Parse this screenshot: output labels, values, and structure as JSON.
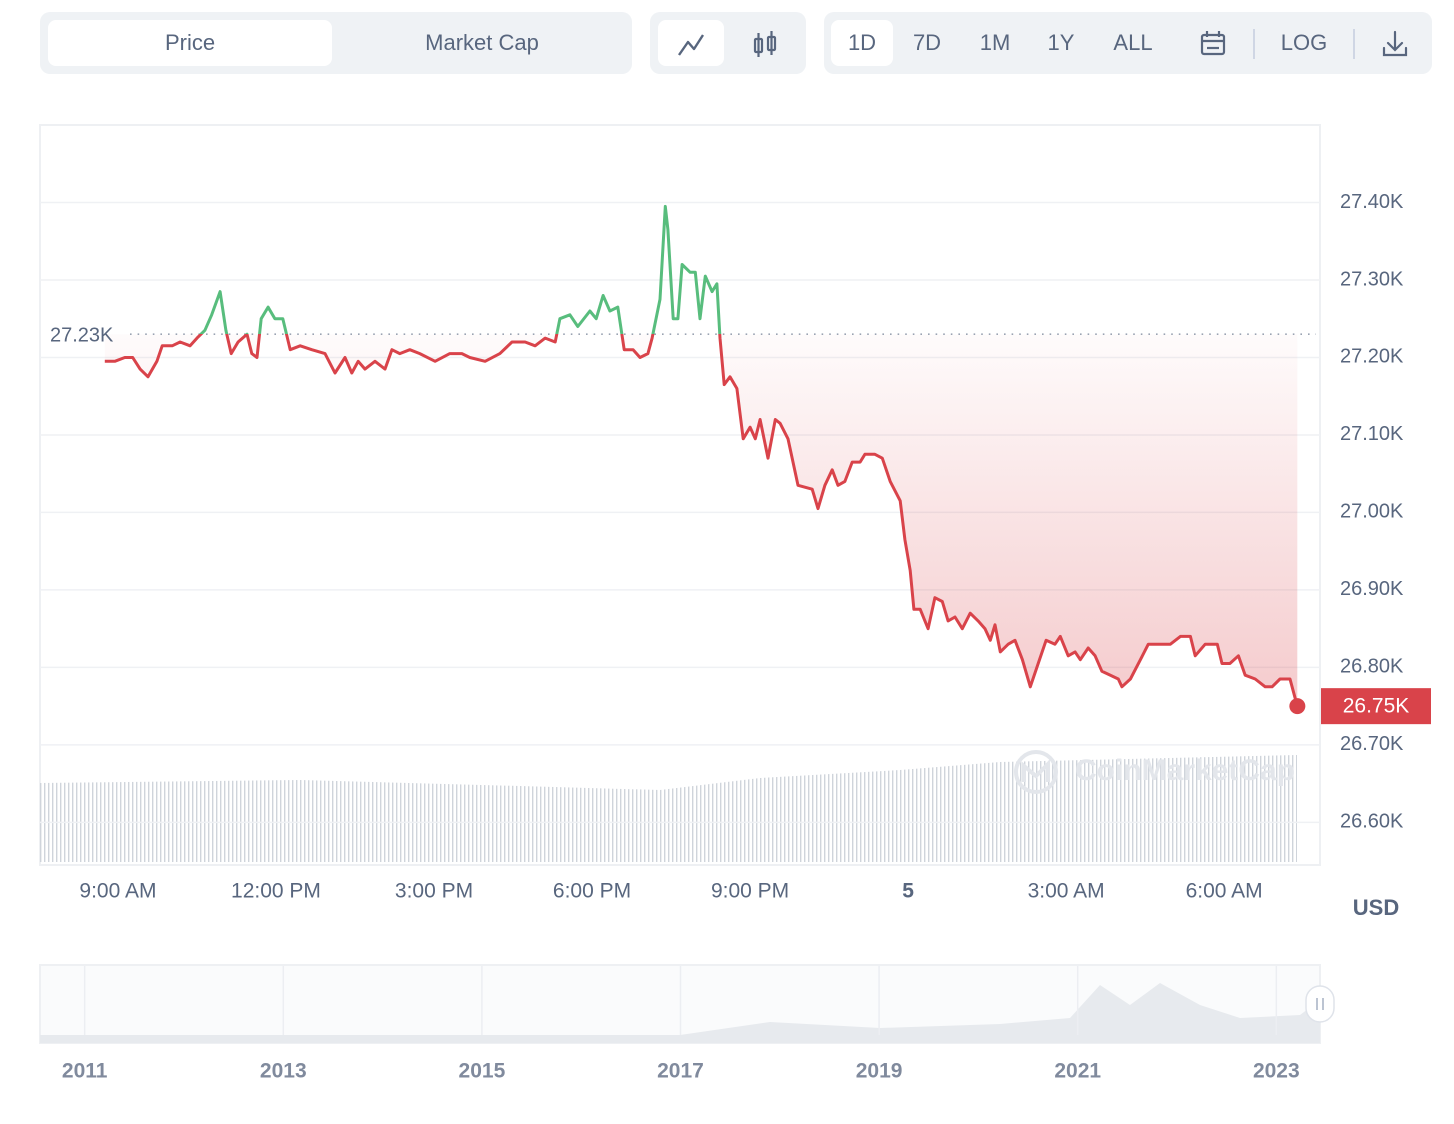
{
  "toolbar": {
    "modes": [
      "Price",
      "Market Cap"
    ],
    "ranges": [
      "1D",
      "7D",
      "1M",
      "1Y",
      "ALL"
    ],
    "log": "LOG"
  },
  "chart_data": {
    "type": "line",
    "x": [
      8.75,
      8.94,
      9.13,
      9.28,
      9.42,
      9.57,
      9.74,
      9.84,
      10.03,
      10.18,
      10.37,
      10.5,
      10.65,
      10.78,
      10.94,
      11.05,
      11.15,
      11.28,
      11.45,
      11.54,
      11.64,
      11.72,
      11.85,
      11.98,
      12.13,
      12.27,
      12.46,
      12.68,
      12.93,
      13.12,
      13.31,
      13.44,
      13.56,
      13.69,
      13.88,
      14.07,
      14.2,
      14.35,
      14.54,
      14.73,
      15.02,
      15.3,
      15.53,
      15.68,
      15.97,
      16.25,
      16.48,
      16.73,
      16.92,
      17.11,
      17.3,
      17.39,
      17.58,
      17.73,
      17.96,
      18.08,
      18.21,
      18.34,
      18.49,
      18.61,
      18.78,
      18.91,
      19.06,
      19.14,
      19.29,
      19.39,
      19.44,
      19.54,
      19.63,
      19.71,
      19.86,
      19.96,
      20.05,
      20.15,
      20.28,
      20.37,
      20.43,
      20.51,
      20.62,
      20.75,
      20.87,
      21.0,
      21.1,
      21.19,
      21.34,
      21.48,
      21.57,
      21.72,
      21.91,
      22.18,
      22.29,
      22.42,
      22.56,
      22.67,
      22.8,
      22.94,
      23.09,
      23.18,
      23.37,
      23.51,
      23.66,
      23.85,
      23.94,
      24.04,
      24.11,
      24.23,
      24.38,
      24.51,
      24.65,
      24.76,
      24.89,
      25.03,
      25.18,
      25.33,
      25.46,
      25.56,
      25.65,
      25.75,
      25.9,
      26.03,
      26.17,
      26.32,
      26.47,
      26.62,
      26.79,
      26.89,
      27.04,
      27.17,
      27.27,
      27.42,
      27.55,
      27.68,
      27.84,
      27.99,
      28.06,
      28.22,
      28.41,
      28.56,
      28.79,
      28.98,
      29.17,
      29.36,
      29.45,
      29.64,
      29.87,
      29.96,
      30.11,
      30.27,
      30.4,
      30.59,
      30.78,
      30.91,
      31.06,
      31.25,
      31.39
    ],
    "values": [
      27195,
      27195,
      27200,
      27200,
      27185,
      27175,
      27195,
      27215,
      27215,
      27220,
      27215,
      27225,
      27235,
      27255,
      27285,
      27235,
      27205,
      27220,
      27230,
      27205,
      27200,
      27250,
      27265,
      27250,
      27250,
      27210,
      27215,
      27210,
      27205,
      27180,
      27200,
      27180,
      27195,
      27185,
      27195,
      27185,
      27210,
      27205,
      27210,
      27205,
      27195,
      27205,
      27205,
      27200,
      27195,
      27205,
      27220,
      27220,
      27215,
      27225,
      27220,
      27250,
      27255,
      27240,
      27260,
      27250,
      27280,
      27260,
      27265,
      27210,
      27210,
      27200,
      27205,
      27225,
      27275,
      27395,
      27365,
      27250,
      27250,
      27320,
      27310,
      27310,
      27250,
      27305,
      27285,
      27295,
      27225,
      27165,
      27175,
      27160,
      27095,
      27110,
      27095,
      27120,
      27070,
      27120,
      27115,
      27095,
      27035,
      27030,
      27005,
      27035,
      27055,
      27035,
      27040,
      27065,
      27065,
      27075,
      27075,
      27070,
      27040,
      27015,
      26965,
      26925,
      26875,
      26875,
      26850,
      26890,
      26885,
      26860,
      26865,
      26850,
      26870,
      26860,
      26850,
      26835,
      26855,
      26820,
      26830,
      26835,
      26810,
      26775,
      26805,
      26835,
      26830,
      26840,
      26815,
      26820,
      26810,
      26825,
      26815,
      26795,
      26790,
      26785,
      26775,
      26785,
      26810,
      26830,
      26830,
      26830,
      26840,
      26840,
      26815,
      26830,
      26830,
      26805,
      26805,
      26815,
      26790,
      26785,
      26775,
      26775,
      26785,
      26785,
      26750
    ],
    "color_above": "#58bd7d",
    "color_below": "#d9434a",
    "reference": {
      "value": 27230,
      "label": "27.23K"
    },
    "current_price": {
      "value": 26750,
      "label": "26.75K"
    },
    "xlim": [
      7.52,
      31.82
    ],
    "xticks": [
      {
        "value": 9,
        "label": "9:00 AM"
      },
      {
        "value": 12,
        "label": "12:00 PM"
      },
      {
        "value": 15,
        "label": "3:00 PM"
      },
      {
        "value": 18,
        "label": "6:00 PM"
      },
      {
        "value": 21,
        "label": "9:00 PM"
      },
      {
        "value": 24,
        "label": "5"
      },
      {
        "value": 27,
        "label": "3:00 AM"
      },
      {
        "value": 30,
        "label": "6:00 AM"
      }
    ],
    "ylim": [
      26545,
      27500
    ],
    "yticks": [
      {
        "value": 27400,
        "label": "27.40K"
      },
      {
        "value": 27300,
        "label": "27.30K"
      },
      {
        "value": 27200,
        "label": "27.20K"
      },
      {
        "value": 27100,
        "label": "27.10K"
      },
      {
        "value": 27000,
        "label": "27.00K"
      },
      {
        "value": 26900,
        "label": "26.90K"
      },
      {
        "value": 26800,
        "label": "26.80K"
      },
      {
        "value": 26700,
        "label": "26.70K"
      },
      {
        "value": 26600,
        "label": "26.60K"
      }
    ],
    "grid": true,
    "currency": "USD",
    "watermark": "CoinMarketCap"
  },
  "navigator": {
    "xlim": [
      2010.55,
      2023.44
    ],
    "xticks": [
      2011,
      2013,
      2015,
      2017,
      2019,
      2021,
      2023
    ]
  }
}
